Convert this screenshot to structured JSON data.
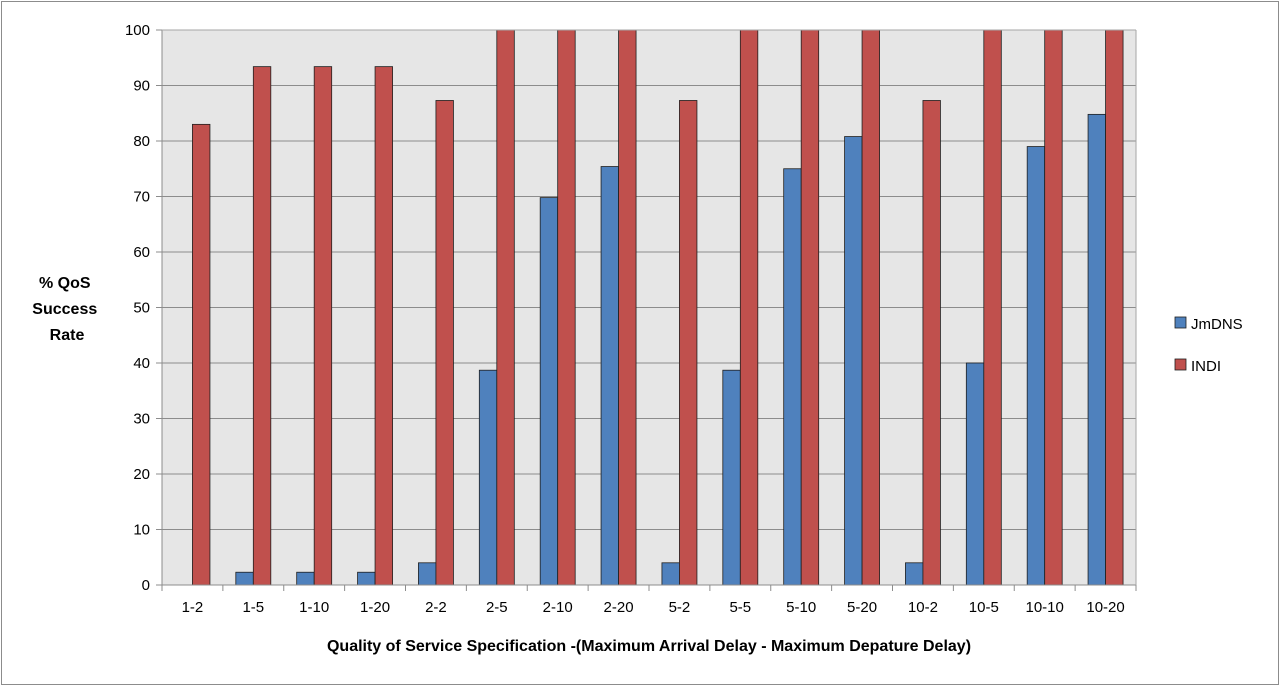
{
  "chart_data": {
    "type": "bar",
    "title": "",
    "ylabel_lines": [
      "% QoS",
      "Success",
      "Rate"
    ],
    "xlabel": "Quality of Service Specification -(Maximum Arrival Delay - Maximum Depature Delay)",
    "categories": [
      "1-2",
      "1-5",
      "1-10",
      "1-20",
      "2-2",
      "2-5",
      "2-10",
      "2-20",
      "5-2",
      "5-5",
      "5-10",
      "5-20",
      "10-2",
      "10-5",
      "10-10",
      "10-20"
    ],
    "series": [
      {
        "name": "JmDNS",
        "color": "#4f81bd",
        "values": [
          0,
          2.3,
          2.3,
          2.3,
          4,
          38.7,
          69.8,
          75.4,
          4,
          38.7,
          75,
          80.8,
          4,
          40,
          79,
          84.8
        ]
      },
      {
        "name": "INDI",
        "color": "#c0504d",
        "values": [
          83,
          93.4,
          93.4,
          93.4,
          87.3,
          100,
          100,
          100,
          87.3,
          100,
          100,
          100,
          87.3,
          100,
          100,
          100
        ]
      }
    ],
    "ylim": [
      0,
      100
    ],
    "yticks": [
      0,
      10,
      20,
      30,
      40,
      50,
      60,
      70,
      80,
      90,
      100
    ],
    "grid": true,
    "plot_background": "#e6e6e6",
    "legend_position": "right"
  }
}
